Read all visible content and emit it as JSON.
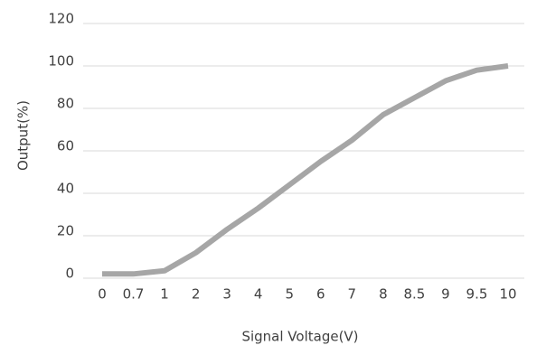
{
  "chart_data": {
    "type": "line",
    "x_label": "Signal Voltage(V)",
    "y_label": "Output(%)",
    "categories": [
      "0",
      "0.7",
      "1",
      "2",
      "3",
      "4",
      "5",
      "6",
      "7",
      "8",
      "8.5",
      "9",
      "9.5",
      "10"
    ],
    "values": [
      2,
      2,
      3.5,
      12,
      23,
      33,
      44,
      55,
      65,
      77,
      85,
      93,
      98,
      100
    ],
    "color": "#a6a6a6",
    "ylim": [
      0,
      120
    ],
    "yticks": [
      0,
      20,
      40,
      60,
      80,
      100,
      120
    ],
    "grid": true
  }
}
